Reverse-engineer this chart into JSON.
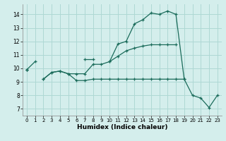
{
  "xlabel": "Humidex (Indice chaleur)",
  "bg_color": "#d4eeec",
  "grid_color": "#aed8d4",
  "line_color": "#1a6b5a",
  "xlim": [
    -0.5,
    23.5
  ],
  "ylim": [
    6.5,
    14.75
  ],
  "xticks": [
    0,
    1,
    2,
    3,
    4,
    5,
    6,
    7,
    8,
    9,
    10,
    11,
    12,
    13,
    14,
    15,
    16,
    17,
    18,
    19,
    20,
    21,
    22,
    23
  ],
  "yticks": [
    7,
    8,
    9,
    10,
    11,
    12,
    13,
    14
  ],
  "line1_y": [
    9.9,
    10.5,
    null,
    null,
    null,
    null,
    null,
    10.7,
    10.7,
    null,
    10.5,
    11.8,
    12.0,
    13.3,
    13.6,
    14.1,
    14.0,
    14.25,
    14.0,
    9.2,
    null,
    null,
    null,
    null
  ],
  "line2_y": [
    9.9,
    null,
    9.2,
    9.7,
    9.8,
    9.6,
    9.1,
    9.1,
    9.2,
    9.2,
    9.2,
    9.2,
    9.2,
    9.2,
    9.2,
    9.2,
    9.2,
    9.2,
    9.2,
    9.2,
    8.0,
    7.8,
    7.1,
    8.0
  ],
  "line3_y": [
    9.9,
    null,
    9.2,
    9.7,
    9.8,
    9.6,
    9.6,
    9.6,
    10.3,
    10.3,
    10.5,
    10.9,
    11.3,
    11.5,
    11.65,
    11.75,
    11.75,
    11.75,
    11.75,
    null,
    null,
    null,
    null,
    null
  ]
}
